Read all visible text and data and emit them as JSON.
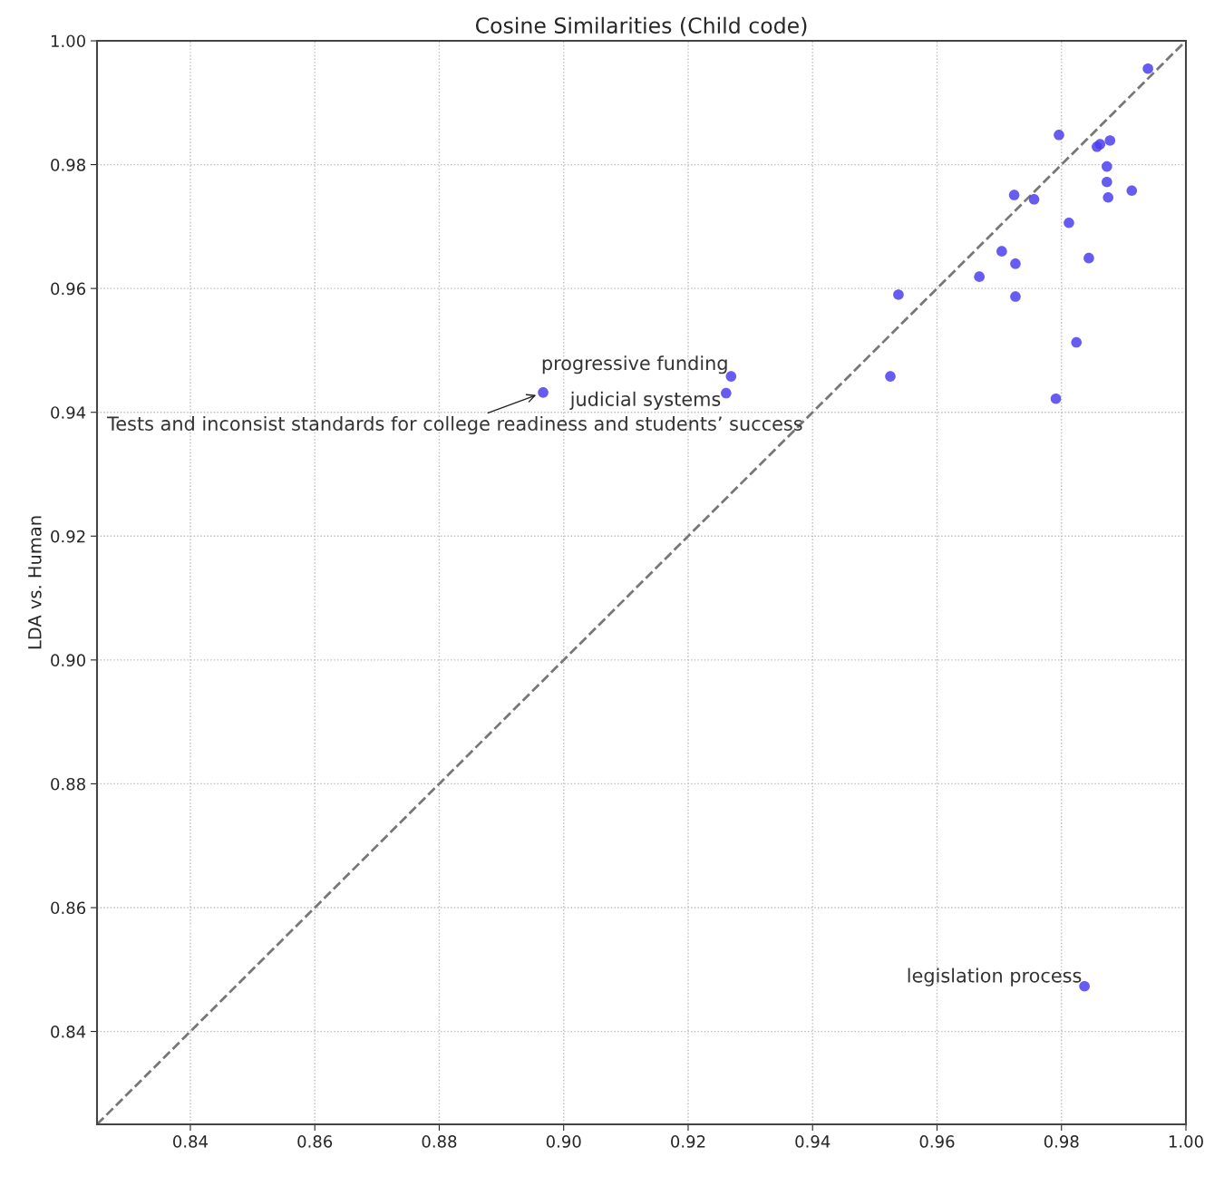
{
  "chart_data": {
    "type": "scatter",
    "title": "Cosine Similarities (Child code)",
    "ylabel": "LDA vs. Human",
    "x": [
      0.9939,
      0.9796,
      0.9857,
      0.9862,
      0.9878,
      0.9873,
      0.9873,
      0.9875,
      0.9913,
      0.9724,
      0.9756,
      0.9812,
      0.9704,
      0.9726,
      0.9844,
      0.9668,
      0.9538,
      0.9726,
      0.9824,
      0.9525,
      0.9791,
      0.9269,
      0.9261,
      0.8967,
      0.9837
    ],
    "series": [
      {
        "color": "#4b3ff0",
        "marker": "circle",
        "values": [
          0.9955,
          0.9848,
          0.9829,
          0.9833,
          0.9839,
          0.9797,
          0.9772,
          0.9747,
          0.9758,
          0.9751,
          0.9744,
          0.9706,
          0.966,
          0.964,
          0.9649,
          0.9619,
          0.959,
          0.9587,
          0.9513,
          0.9458,
          0.9422,
          0.9458,
          0.9431,
          0.9432,
          0.8473
        ]
      },
      {
        "type": "line",
        "color": "#777777",
        "line_style": "dashed",
        "x": [
          0.825,
          1.0
        ],
        "values": [
          0.825,
          1.0
        ]
      }
    ],
    "annotations": [
      {
        "text": "progressive funding",
        "x": 0.9269,
        "y": 0.9458
      },
      {
        "text": "judicial systems",
        "x": 0.9261,
        "y": 0.9431
      },
      {
        "text": "Tests and inconsist standards for college readiness and students’ success",
        "x": 0.8967,
        "y": 0.9432
      },
      {
        "text": "legislation process",
        "x": 0.9837,
        "y": 0.8473
      }
    ],
    "xlim": [
      0.825,
      1.0
    ],
    "ylim": [
      0.825,
      1.0
    ],
    "xticks": [
      0.84,
      0.86,
      0.88,
      {
        "value": 0.9,
        "label": "0.90"
      },
      0.92,
      0.94,
      0.96,
      0.98,
      {
        "value": 1.0,
        "label": "1.00"
      }
    ],
    "yticks": [
      0.84,
      0.86,
      0.88,
      {
        "value": 0.9,
        "label": "0.90"
      },
      0.92,
      0.94,
      0.96,
      0.98,
      {
        "value": 1.0,
        "label": "1.00"
      }
    ],
    "grid": true
  }
}
